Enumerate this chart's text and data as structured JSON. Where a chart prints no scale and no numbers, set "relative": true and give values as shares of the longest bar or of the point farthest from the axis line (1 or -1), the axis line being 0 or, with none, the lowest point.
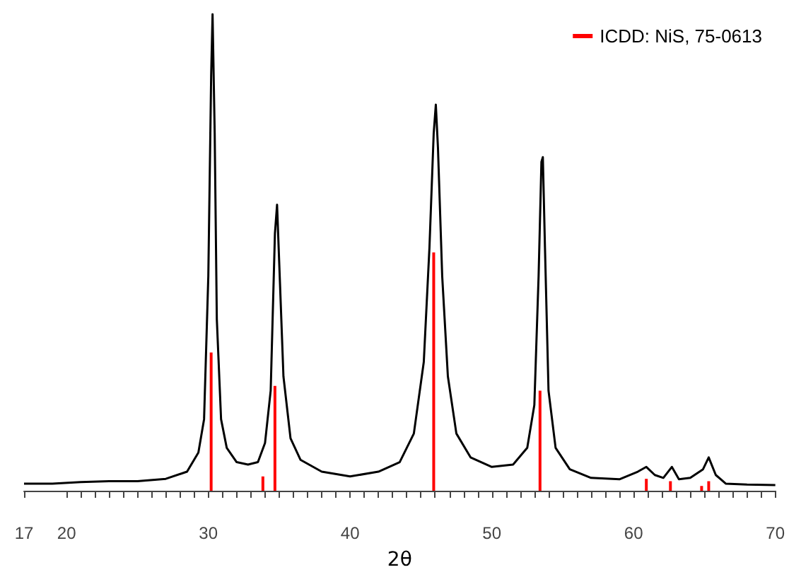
{
  "chart_data": {
    "type": "line",
    "xlabel": "2θ",
    "relative": true,
    "legend": "top right",
    "grid": false,
    "marker": "none",
    "tick_labels": "x",
    "xlim": [
      17,
      70
    ],
    "xticks": [
      17,
      20,
      {
        "value": 21,
        "label": null
      },
      {
        "value": 22,
        "label": null
      },
      {
        "value": 23,
        "label": null
      },
      {
        "value": 24,
        "label": null
      },
      {
        "value": 25,
        "label": null
      },
      {
        "value": 26,
        "label": null
      },
      {
        "value": 27,
        "label": null
      },
      {
        "value": 28,
        "label": null
      },
      {
        "value": 29,
        "label": null
      },
      30,
      {
        "value": 31,
        "label": null
      },
      {
        "value": 32,
        "label": null
      },
      {
        "value": 33,
        "label": null
      },
      {
        "value": 34,
        "label": null
      },
      {
        "value": 35,
        "label": null
      },
      {
        "value": 36,
        "label": null
      },
      {
        "value": 37,
        "label": null
      },
      {
        "value": 38,
        "label": null
      },
      {
        "value": 39,
        "label": null
      },
      40,
      {
        "value": 41,
        "label": null
      },
      {
        "value": 42,
        "label": null
      },
      {
        "value": 43,
        "label": null
      },
      {
        "value": 44,
        "label": null
      },
      {
        "value": 45,
        "label": null
      },
      {
        "value": 46,
        "label": null
      },
      {
        "value": 47,
        "label": null
      },
      {
        "value": 48,
        "label": null
      },
      {
        "value": 49,
        "label": null
      },
      50,
      {
        "value": 51,
        "label": null
      },
      {
        "value": 52,
        "label": null
      },
      {
        "value": 53,
        "label": null
      },
      {
        "value": 54,
        "label": null
      },
      {
        "value": 55,
        "label": null
      },
      {
        "value": 56,
        "label": null
      },
      {
        "value": 57,
        "label": null
      },
      {
        "value": 58,
        "label": null
      },
      {
        "value": 59,
        "label": null
      },
      60,
      {
        "value": 61,
        "label": null
      },
      {
        "value": 62,
        "label": null
      },
      {
        "value": 63,
        "label": null
      },
      {
        "value": 64,
        "label": null
      },
      {
        "value": 65,
        "label": null
      },
      {
        "value": 66,
        "label": null
      },
      {
        "value": 67,
        "label": null
      },
      {
        "value": 68,
        "label": null
      },
      {
        "value": 69,
        "label": null
      },
      70
    ],
    "series": [
      {
        "color": "#000000",
        "x": [
          17,
          19,
          21,
          23,
          25,
          27,
          28.5,
          29.3,
          29.7,
          30,
          30.2,
          30.3,
          30.45,
          30.6,
          30.9,
          31.3,
          32,
          32.8,
          33.5,
          34,
          34.4,
          34.7,
          34.85,
          35,
          35.3,
          35.8,
          36.5,
          38,
          40,
          42,
          43.5,
          44.5,
          45.2,
          45.6,
          45.9,
          46.05,
          46.2,
          46.5,
          46.9,
          47.5,
          48.5,
          50,
          51.5,
          52.5,
          53,
          53.3,
          53.5,
          53.6,
          53.75,
          54,
          54.5,
          55.5,
          57,
          59,
          60.3,
          60.9,
          61.5,
          62.1,
          62.7,
          63.2,
          64,
          64.9,
          65.3,
          65.8,
          66.5,
          68,
          70
        ],
        "values": [
          0.015,
          0.015,
          0.018,
          0.02,
          0.02,
          0.025,
          0.04,
          0.08,
          0.15,
          0.45,
          0.87,
          1,
          0.75,
          0.36,
          0.15,
          0.09,
          0.06,
          0.055,
          0.06,
          0.1,
          0.21,
          0.54,
          0.6,
          0.48,
          0.24,
          0.11,
          0.065,
          0.04,
          0.03,
          0.04,
          0.06,
          0.12,
          0.27,
          0.51,
          0.75,
          0.81,
          0.72,
          0.45,
          0.24,
          0.12,
          0.07,
          0.05,
          0.055,
          0.09,
          0.18,
          0.45,
          0.69,
          0.7,
          0.51,
          0.21,
          0.09,
          0.045,
          0.027,
          0.024,
          0.04,
          0.05,
          0.033,
          0.027,
          0.05,
          0.024,
          0.027,
          0.045,
          0.07,
          0.033,
          0.015,
          0.013,
          0.012
        ]
      },
      {
        "type": "bar",
        "name": "ICDD: NiS, 75-0613",
        "color": "#ff0000",
        "x": [
          30.2,
          33.85,
          34.7,
          45.9,
          53.4,
          60.9,
          62.6,
          64.8,
          65.3
        ],
        "values": [
          0.29,
          0.03,
          0.22,
          0.5,
          0.21,
          0.025,
          0.02,
          0.01,
          0.02
        ]
      }
    ]
  }
}
